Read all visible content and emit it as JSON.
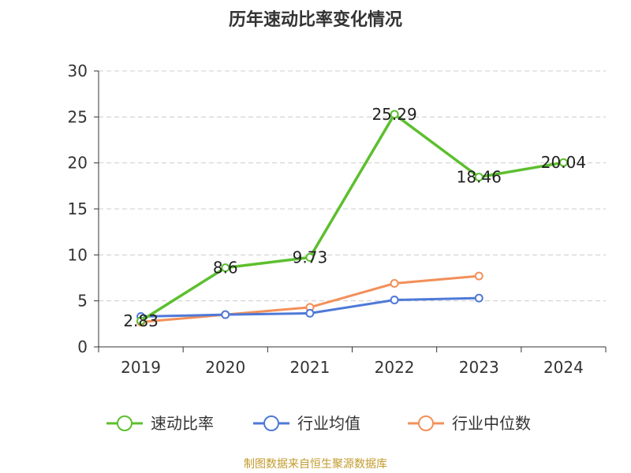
{
  "chart_data": {
    "type": "line",
    "title": "历年速动比率变化情况",
    "xlabel": "",
    "ylabel": "",
    "categories": [
      "2019",
      "2020",
      "2021",
      "2022",
      "2023",
      "2024"
    ],
    "ylim": [
      0,
      30
    ],
    "yticks": [
      0,
      5,
      10,
      15,
      20,
      25,
      30
    ],
    "grid": true,
    "legend_position": "bottom",
    "series": [
      {
        "name": "速动比率",
        "color": "#5dbf2f",
        "values": [
          2.83,
          8.6,
          9.73,
          25.29,
          18.46,
          20.04
        ],
        "data_labels": [
          "2.83",
          "8.6",
          "9.73",
          "25.29",
          "18.46",
          "20.04"
        ]
      },
      {
        "name": "行业均值",
        "color": "#4e79d8",
        "values": [
          3.3,
          3.5,
          3.65,
          5.1,
          5.3,
          null
        ],
        "data_labels": null
      },
      {
        "name": "行业中位数",
        "color": "#f2905a",
        "values": [
          2.7,
          3.5,
          4.3,
          6.9,
          7.7,
          null
        ],
        "data_labels": null
      }
    ]
  },
  "footer": {
    "source": "制图数据来自恒生聚源数据库",
    "source_color": "#c29a2c"
  }
}
